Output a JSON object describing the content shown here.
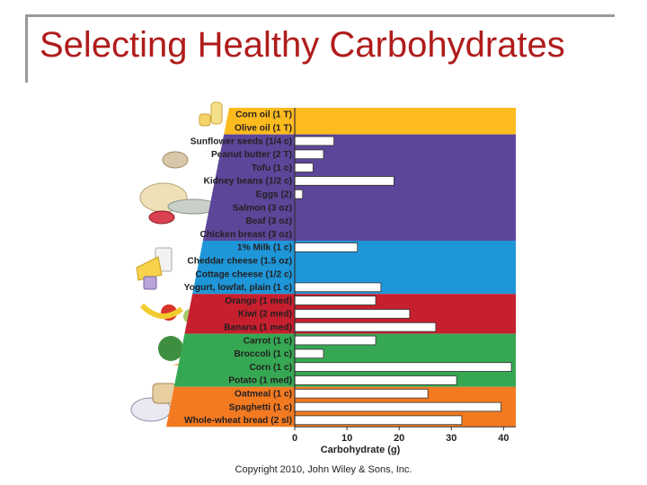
{
  "slide": {
    "title": "Selecting Healthy Carbohydrates",
    "copyright": "Copyright 2010, John Wiley & Sons, Inc."
  },
  "chart_data": {
    "type": "bar",
    "orientation": "horizontal",
    "title": "",
    "xlabel": "Carbohydrate (g)",
    "ylabel": "",
    "xlim": [
      0,
      42
    ],
    "xticks": [
      0,
      10,
      20,
      30,
      40
    ],
    "grid": false,
    "groups": [
      {
        "color": "#FDBB1E",
        "categories": [
          "Corn oil (1 T)",
          "Olive oil (1 T)"
        ],
        "values": [
          0,
          0
        ]
      },
      {
        "color": "#5C4699",
        "categories": [
          "Sunflower seeds (1/4 c)",
          "Peanut butter (2 T)",
          "Tofu (1 c)",
          "Kidney beans (1/2 c)",
          "Eggs (2)",
          "Salmon (3 oz)",
          "Beaf (3 oz)",
          "Chicken breast (3 oz)"
        ],
        "values": [
          7.5,
          5.5,
          3.5,
          19,
          1.5,
          0,
          0,
          0
        ]
      },
      {
        "color": "#1E96D8",
        "categories": [
          "1% Milk (1 c)",
          "Cheddar cheese (1.5 oz)",
          "Cottage cheese (1/2 c)",
          "Yogurt, lowfat, plain (1 c)"
        ],
        "values": [
          12,
          0,
          0,
          16.5
        ]
      },
      {
        "color": "#C61F2E",
        "categories": [
          "Orange (1 med)",
          "Kiwi (2 med)",
          "Banana (1 med)"
        ],
        "values": [
          15.5,
          22,
          27
        ]
      },
      {
        "color": "#36A853",
        "categories": [
          "Carrot (1 c)",
          "Broccoli (1 c)",
          "Corn (1 c)",
          "Potato (1 med)"
        ],
        "values": [
          15.5,
          5.5,
          41.5,
          31
        ]
      },
      {
        "color": "#F37A21",
        "categories": [
          "Oatmeal (1 c)",
          "Spaghetti (1 c)",
          "Whole-wheat bread (2 sl)"
        ],
        "values": [
          25.5,
          39.5,
          32
        ]
      }
    ]
  }
}
